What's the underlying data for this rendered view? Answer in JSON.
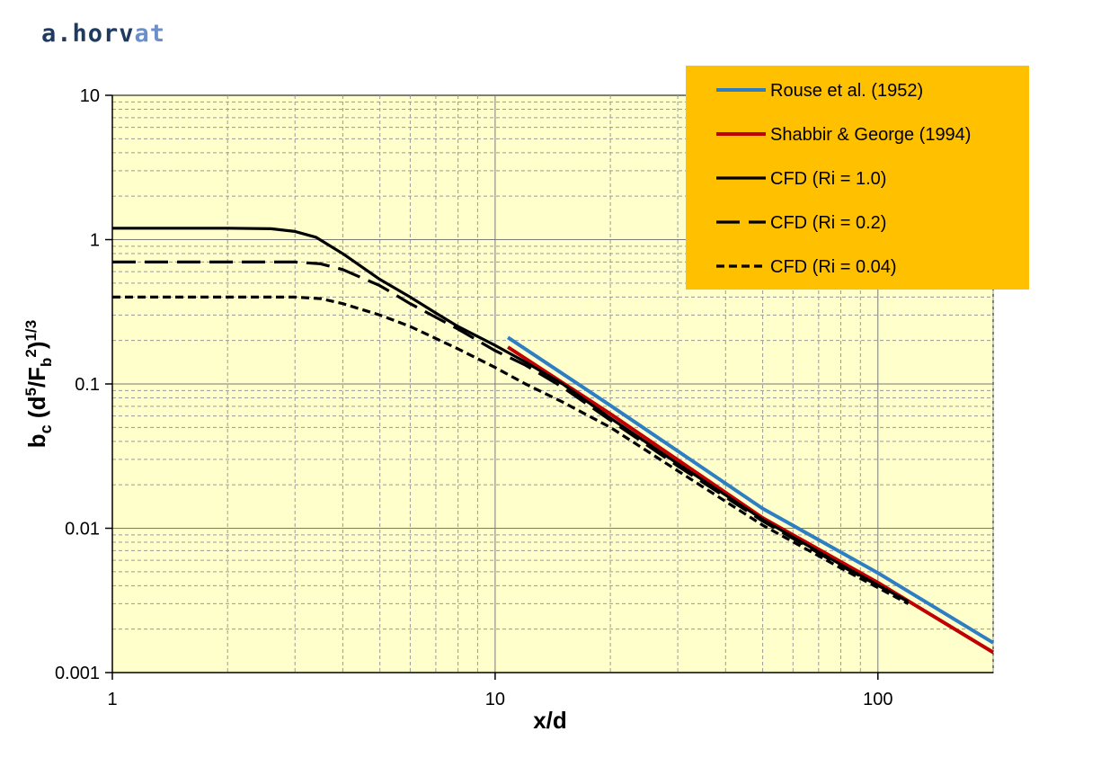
{
  "watermark": "a.horvat",
  "colors": {
    "plot_background": "#FFFFCC",
    "legend_background": "#FFC000",
    "rouse": "#2E7EC4",
    "shabbir": "#C00000",
    "cfd": "#000000",
    "grid": "#808080"
  },
  "chart_data": {
    "type": "line",
    "x_scale": "log",
    "y_scale": "log",
    "xlim": [
      1,
      200
    ],
    "ylim": [
      0.001,
      10
    ],
    "xlabel": "x/d",
    "ylabel": {
      "main": "b",
      "main_sub": "c",
      "paren_open": " (d",
      "sup1": "5",
      "mid": "/F",
      "sub2": "b",
      "sup2": "2",
      "paren_close": ")",
      "exponent": "1/3"
    },
    "x_ticks": [
      1,
      10,
      100
    ],
    "x_tick_labels": [
      "1",
      "10",
      "100"
    ],
    "y_ticks": [
      0.001,
      0.01,
      0.1,
      1,
      10
    ],
    "y_tick_labels": [
      "0.001",
      "0.01",
      "0.1",
      "1",
      "10"
    ],
    "grid": "major and minor",
    "legend_position": "top-right",
    "series": [
      {
        "name": "Rouse et al. (1952)",
        "color": "#2E7EC4",
        "style": "solid",
        "x": [
          10.8,
          20,
          50,
          100,
          200
        ],
        "y": [
          0.21,
          0.071,
          0.0137,
          0.0049,
          0.00161
        ]
      },
      {
        "name": "Shabbir & George (1994)",
        "color": "#C00000",
        "style": "solid",
        "x": [
          10.8,
          20,
          50,
          100,
          200
        ],
        "y": [
          0.18,
          0.062,
          0.0118,
          0.0042,
          0.00138
        ]
      },
      {
        "name": "CFD (Ri = 1.0)",
        "color": "#000000",
        "style": "solid",
        "x": [
          1,
          2,
          2.6,
          3,
          3.4,
          4,
          5,
          6,
          7,
          8,
          10,
          12,
          15,
          20,
          30,
          50,
          80,
          120
        ],
        "y": [
          1.2,
          1.2,
          1.19,
          1.14,
          1.04,
          0.8,
          0.53,
          0.4,
          0.31,
          0.25,
          0.185,
          0.142,
          0.1,
          0.058,
          0.028,
          0.0115,
          0.0056,
          0.0031
        ]
      },
      {
        "name": "CFD (Ri = 0.2)",
        "color": "#000000",
        "style": "dashed",
        "x": [
          1,
          2,
          3,
          3.5,
          4,
          5,
          6,
          8,
          10,
          12,
          15,
          20,
          30,
          50,
          80,
          120
        ],
        "y": [
          0.7,
          0.7,
          0.7,
          0.68,
          0.62,
          0.48,
          0.36,
          0.24,
          0.17,
          0.135,
          0.095,
          0.056,
          0.027,
          0.0112,
          0.0055,
          0.0031
        ]
      },
      {
        "name": "CFD (Ri = 0.04)",
        "color": "#000000",
        "style": "dotted",
        "x": [
          1,
          2,
          3,
          3.5,
          4,
          5,
          6,
          8,
          10,
          12,
          15,
          20,
          30,
          50,
          80,
          120
        ],
        "y": [
          0.4,
          0.4,
          0.4,
          0.39,
          0.36,
          0.3,
          0.25,
          0.175,
          0.13,
          0.1,
          0.075,
          0.05,
          0.025,
          0.0105,
          0.0053,
          0.003
        ]
      }
    ]
  }
}
